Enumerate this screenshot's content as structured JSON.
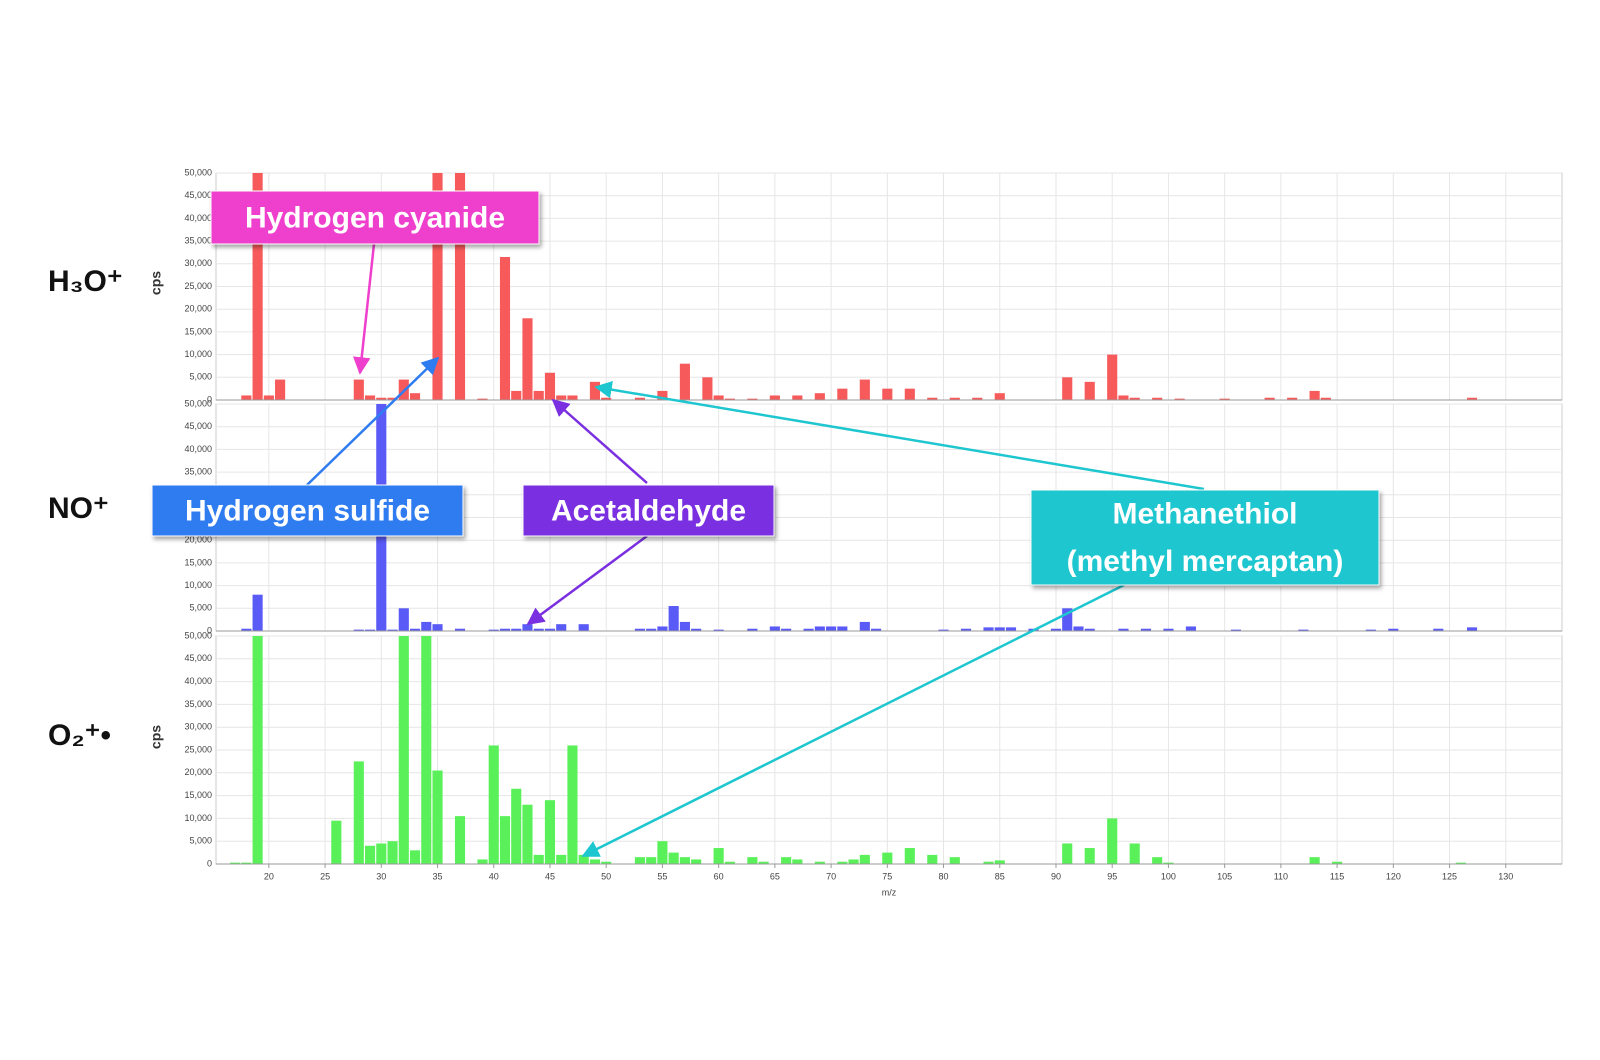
{
  "chart_data": [
    {
      "type": "bar",
      "ion": "H₃O⁺",
      "ylabel": "cps",
      "color": "#f65a5a",
      "xlim": [
        15.3,
        135
      ],
      "ylim": [
        0,
        50000
      ],
      "grid": true,
      "yticks": [
        0,
        {
          "value": 5000,
          "label": "5,000"
        },
        {
          "value": 10000,
          "label": "10,000"
        },
        {
          "value": 15000,
          "label": "15,000"
        },
        {
          "value": 20000,
          "label": "20,000"
        },
        {
          "value": 25000,
          "label": "25,000"
        },
        {
          "value": 30000,
          "label": "30,000"
        },
        {
          "value": 35000,
          "label": "35,000"
        },
        {
          "value": 40000,
          "label": "40,000"
        },
        {
          "value": 45000,
          "label": "45,000"
        },
        {
          "value": 50000,
          "label": "50,000"
        }
      ],
      "x": [
        18,
        19,
        20,
        21,
        28,
        29,
        30,
        31,
        32,
        33,
        35,
        37,
        39,
        41,
        42,
        43,
        44,
        45,
        46,
        47,
        49,
        50,
        53,
        55,
        57,
        59,
        60,
        61,
        63,
        65,
        67,
        69,
        71,
        73,
        75,
        77,
        79,
        81,
        83,
        85,
        91,
        93,
        95,
        96,
        97,
        99,
        101,
        105,
        109,
        111,
        113,
        114,
        127
      ],
      "values": [
        1000,
        50000,
        1000,
        4500,
        4500,
        1000,
        500,
        500,
        4500,
        1500,
        50000,
        50000,
        300,
        31500,
        2000,
        18000,
        2000,
        6000,
        1000,
        1000,
        4000,
        500,
        500,
        2000,
        8000,
        5000,
        1000,
        300,
        300,
        1000,
        1000,
        1500,
        2500,
        4500,
        2500,
        2500,
        500,
        500,
        500,
        1500,
        5000,
        4000,
        10000,
        1000,
        500,
        500,
        300,
        300,
        500,
        500,
        2000,
        500,
        500
      ]
    },
    {
      "type": "bar",
      "ion": "NO⁺",
      "color": "#5a5af6",
      "xlim": [
        15.3,
        135
      ],
      "ylim": [
        0,
        50000
      ],
      "grid": true,
      "yticks": [
        0,
        {
          "value": 5000,
          "label": "5,000"
        },
        {
          "value": 10000,
          "label": "10,000"
        },
        {
          "value": 15000,
          "label": "15,000"
        },
        {
          "value": 20000,
          "label": "20,000"
        },
        {
          "value": 25000,
          "label": "25,000"
        },
        {
          "value": 30000,
          "label": "30,000"
        },
        {
          "value": 35000,
          "label": "35,000"
        },
        {
          "value": 40000,
          "label": "40,000"
        },
        {
          "value": 45000,
          "label": "45,000"
        },
        {
          "value": 50000,
          "label": "50,000"
        }
      ],
      "x": [
        18,
        19,
        28,
        29,
        30,
        31,
        32,
        33,
        34,
        35,
        37,
        40,
        41,
        42,
        43,
        44,
        45,
        46,
        48,
        53,
        54,
        55,
        56,
        57,
        58,
        60,
        63,
        65,
        66,
        68,
        69,
        70,
        71,
        73,
        74,
        80,
        82,
        84,
        85,
        86,
        88,
        90,
        91,
        92,
        93,
        96,
        98,
        100,
        102,
        106,
        112,
        118,
        120,
        124,
        127
      ],
      "values": [
        500,
        8000,
        300,
        300,
        50000,
        300,
        5000,
        500,
        2000,
        1500,
        500,
        300,
        500,
        500,
        1500,
        500,
        500,
        1500,
        1500,
        500,
        500,
        1000,
        5500,
        2000,
        500,
        300,
        500,
        1000,
        500,
        500,
        1000,
        1000,
        1000,
        2000,
        500,
        300,
        500,
        800,
        800,
        800,
        500,
        500,
        5000,
        1000,
        500,
        500,
        500,
        500,
        1000,
        300,
        300,
        300,
        500,
        500,
        800
      ]
    },
    {
      "type": "bar",
      "ion": "O₂⁺•",
      "ylabel": "cps",
      "xlabel": "m/z",
      "color": "#5af05a",
      "xlim": [
        15.3,
        135
      ],
      "ylim": [
        0,
        50000
      ],
      "grid": true,
      "yticks": [
        0,
        {
          "value": 5000,
          "label": "5,000"
        },
        {
          "value": 10000,
          "label": "10,000"
        },
        {
          "value": 15000,
          "label": "15,000"
        },
        {
          "value": 20000,
          "label": "20,000"
        },
        {
          "value": 25000,
          "label": "25,000"
        },
        {
          "value": 30000,
          "label": "30,000"
        },
        {
          "value": 35000,
          "label": "35,000"
        },
        {
          "value": 40000,
          "label": "40,000"
        },
        {
          "value": 45000,
          "label": "45,000"
        },
        {
          "value": 50000,
          "label": "50,000"
        }
      ],
      "xticks": [
        20,
        25,
        30,
        35,
        40,
        45,
        50,
        55,
        60,
        65,
        70,
        75,
        80,
        85,
        90,
        95,
        100,
        105,
        110,
        115,
        120,
        125,
        130
      ],
      "x": [
        17,
        18,
        19,
        26,
        28,
        29,
        30,
        31,
        32,
        33,
        34,
        35,
        37,
        39,
        40,
        41,
        42,
        43,
        44,
        45,
        46,
        47,
        48,
        49,
        50,
        53,
        54,
        55,
        56,
        57,
        58,
        60,
        61,
        63,
        64,
        66,
        67,
        69,
        71,
        72,
        73,
        75,
        77,
        79,
        81,
        84,
        85,
        91,
        93,
        95,
        97,
        99,
        100,
        113,
        115,
        126
      ],
      "values": [
        300,
        300,
        50000,
        9500,
        22500,
        4000,
        4500,
        5000,
        50000,
        3000,
        50000,
        20500,
        10500,
        1000,
        26000,
        10500,
        16500,
        13000,
        2000,
        14000,
        2000,
        26000,
        2000,
        1000,
        500,
        1500,
        1500,
        5000,
        2500,
        1500,
        1000,
        3500,
        500,
        1500,
        500,
        1500,
        1000,
        500,
        500,
        1000,
        2000,
        2500,
        3500,
        2000,
        1500,
        500,
        800,
        4500,
        3500,
        10000,
        4500,
        1500,
        300,
        1500,
        500,
        300
      ]
    }
  ],
  "annotations": [
    {
      "lines": [
        "Hydrogen cyanide"
      ],
      "color": "#ee40cc"
    },
    {
      "lines": [
        "Hydrogen sulfide"
      ],
      "color": "#2f7cf0"
    },
    {
      "lines": [
        "Acetaldehyde"
      ],
      "color": "#7a2fe0"
    },
    {
      "lines": [
        "Methanethiol",
        "(methyl mercaptan)"
      ],
      "color": "#1ec6cf"
    }
  ]
}
